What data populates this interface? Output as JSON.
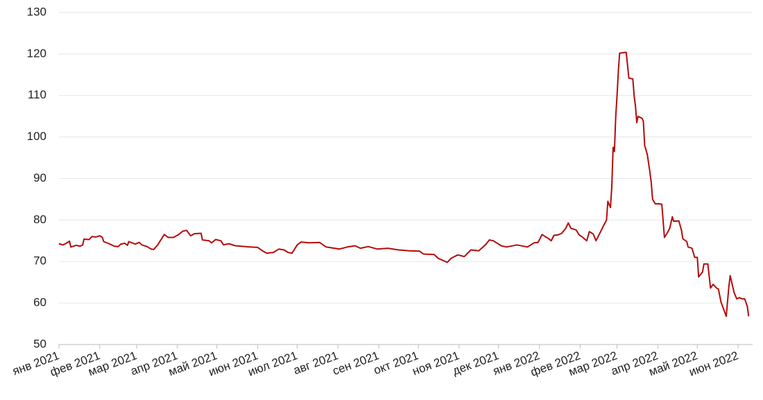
{
  "chart_data": {
    "type": "line",
    "x": [
      0,
      3,
      5,
      8,
      9,
      13,
      16,
      18,
      19,
      23,
      25,
      28,
      31,
      33,
      34,
      38,
      42,
      45,
      47,
      50,
      52,
      53,
      58,
      61,
      63,
      67,
      70,
      72,
      75,
      80,
      83,
      87,
      91,
      94,
      97,
      100,
      103,
      108,
      109,
      114,
      116,
      119,
      123,
      125,
      129,
      134,
      145,
      151,
      155,
      158,
      163,
      167,
      171,
      174,
      177,
      181,
      184,
      190,
      198,
      203,
      213,
      219,
      225,
      229,
      235,
      242,
      250,
      258,
      266,
      274,
      277,
      285,
      288,
      295,
      298,
      303,
      308,
      313,
      319,
      324,
      327,
      330,
      333,
      336,
      340,
      348,
      356,
      361,
      364,
      367,
      372,
      374,
      376,
      379,
      382,
      385,
      387,
      389,
      393,
      395,
      398,
      401,
      403,
      406,
      408,
      412,
      414,
      416,
      417,
      419,
      420,
      421,
      422,
      423,
      424,
      425,
      426,
      428,
      431,
      433,
      436,
      437,
      438,
      439,
      440,
      443,
      444,
      445,
      447,
      449,
      450,
      451,
      453,
      456,
      458,
      460,
      462,
      464,
      466,
      467,
      471,
      473,
      474,
      477,
      478,
      481,
      483,
      485,
      486,
      489,
      490,
      493,
      494,
      495,
      497,
      500,
      501,
      503,
      505,
      507,
      509,
      510,
      513,
      515,
      517,
      519,
      521,
      523,
      524
    ],
    "series": [
      {
        "color": "#b40a0a",
        "values": [
          74.3,
          74.0,
          74.3,
          74.9,
          73.5,
          73.9,
          73.7,
          74.0,
          75.4,
          75.3,
          76.0,
          75.9,
          76.2,
          75.8,
          74.8,
          74.3,
          73.7,
          73.6,
          74.2,
          74.4,
          73.9,
          74.8,
          74.2,
          74.6,
          74.0,
          73.6,
          73.0,
          72.9,
          74.0,
          76.5,
          75.8,
          75.8,
          76.5,
          77.3,
          77.5,
          76.2,
          76.7,
          76.8,
          75.2,
          75.0,
          74.5,
          75.3,
          75.0,
          74.0,
          74.3,
          73.8,
          73.5,
          73.4,
          72.5,
          72.0,
          72.2,
          73.0,
          72.8,
          72.2,
          72.0,
          74.0,
          74.7,
          74.5,
          74.6,
          73.5,
          73.0,
          73.5,
          73.8,
          73.2,
          73.6,
          73.0,
          73.2,
          72.8,
          72.6,
          72.5,
          71.8,
          71.7,
          70.8,
          69.8,
          70.8,
          71.6,
          71.2,
          72.8,
          72.6,
          74.0,
          75.2,
          75.0,
          74.4,
          73.8,
          73.5,
          74.0,
          73.5,
          74.5,
          74.6,
          76.5,
          75.5,
          75.0,
          76.3,
          76.4,
          76.8,
          78.0,
          79.3,
          78.0,
          77.6,
          76.5,
          75.8,
          75.0,
          77.2,
          76.6,
          75.0,
          77.5,
          78.8,
          80.0,
          84.5,
          83.0,
          88.0,
          97.5,
          96.5,
          105.0,
          110.0,
          116.0,
          120.2,
          120.3,
          120.4,
          114.2,
          114.0,
          110.0,
          107.5,
          103.5,
          105.0,
          104.5,
          103.8,
          98.0,
          95.8,
          91.5,
          89.0,
          85.0,
          83.9,
          83.9,
          83.8,
          75.8,
          76.8,
          78.0,
          80.8,
          79.7,
          79.8,
          77.5,
          75.5,
          74.8,
          73.5,
          73.2,
          71.0,
          71.0,
          66.3,
          67.5,
          69.4,
          69.4,
          66.5,
          63.6,
          64.5,
          63.5,
          63.4,
          60.2,
          58.5,
          56.8,
          64.0,
          66.6,
          62.5,
          61.0,
          61.3,
          61.0,
          61.0,
          59.2,
          56.8
        ]
      }
    ],
    "xlim": [
      0,
      527
    ],
    "xticks": [
      {
        "value": 0,
        "label": "янв 2021"
      },
      {
        "value": 31,
        "label": "фев 2021"
      },
      {
        "value": 59,
        "label": "мар 2021"
      },
      {
        "value": 90,
        "label": "апр 2021"
      },
      {
        "value": 120,
        "label": "май 2021"
      },
      {
        "value": 151,
        "label": "июн 2021"
      },
      {
        "value": 181,
        "label": "июл 2021"
      },
      {
        "value": 212,
        "label": "авг 2021"
      },
      {
        "value": 243,
        "label": "сен 2021"
      },
      {
        "value": 273,
        "label": "окт 2021"
      },
      {
        "value": 304,
        "label": "ноя 2021"
      },
      {
        "value": 334,
        "label": "дек 2021"
      },
      {
        "value": 365,
        "label": "янв 2022"
      },
      {
        "value": 396,
        "label": "фев 2022"
      },
      {
        "value": 424,
        "label": "мар 2022"
      },
      {
        "value": 455,
        "label": "апр 2022"
      },
      {
        "value": 485,
        "label": "май 2022"
      },
      {
        "value": 516,
        "label": "июн 2022"
      }
    ],
    "ylim": [
      50,
      130
    ],
    "yticks": [
      50,
      60,
      70,
      80,
      90,
      100,
      110,
      120,
      130
    ],
    "grid": true
  }
}
